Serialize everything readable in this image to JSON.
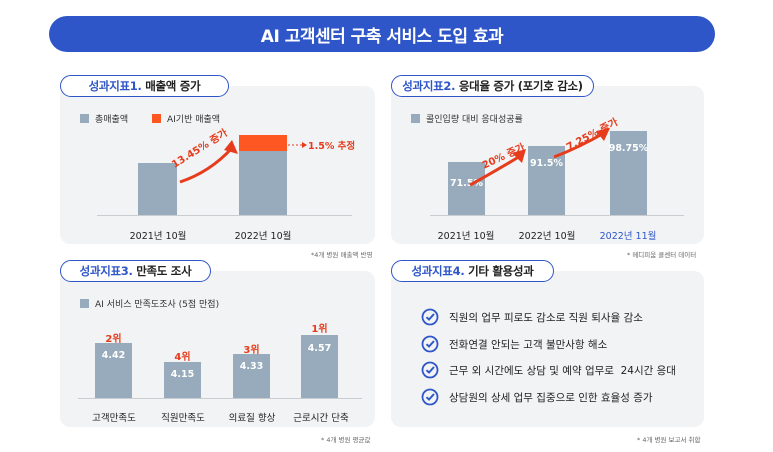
{
  "header": {
    "title": "AI 고객센터 구축 서비스 도입 효과"
  },
  "panel1": {
    "tab_prefix": "성과지표1.",
    "tab_title": "매출액 증가",
    "legend_total": "총매출액",
    "legend_ai": "AI기반 매출액",
    "x_labels": [
      "2021년 10월",
      "2022년 10월"
    ],
    "growth_label": "13.45% 증가",
    "estimate_label": "1.5% 추정",
    "note": "*4개 병원 매출액 반영"
  },
  "panel2": {
    "tab_prefix": "성과지표2.",
    "tab_title": "응대율 증가 (포기호 감소)",
    "legend": "콜인입량 대비 응대성공률",
    "values": [
      "71.5%",
      "91.5%",
      "98.75%"
    ],
    "x_labels": [
      "2021년 10월",
      "2022년 10월",
      "2022년 11월"
    ],
    "growth1": "20% 증가",
    "growth2": "7.25% 증가",
    "note": "* 메디피움 콜센터 데이터"
  },
  "panel3": {
    "tab_prefix": "성과지표3.",
    "tab_title": "만족도 조사",
    "legend": "AI 서비스 만족도조사 (5점 만점)",
    "ranks": [
      "2위",
      "4위",
      "3위",
      "1위"
    ],
    "values": [
      "4.42",
      "4.15",
      "4.33",
      "4.57"
    ],
    "x_labels": [
      "고객만족도",
      "직원만족도",
      "의료질 향상",
      "근로시간 단축"
    ],
    "note": "* 4개 병원 평균값"
  },
  "panel4": {
    "tab_prefix": "성과지표4.",
    "tab_title": "기타 활용성과",
    "items": [
      "직원의 업무 피로도 감소로 직원 퇴사율 감소",
      "전화연결 안되는 고객 불만사항 해소",
      "근무 외 시간에도 상담 및 예약 업무로  24시간 응대",
      "상담원의 상세 업무 집중으로 인한 효율성 증가"
    ],
    "note": "* 4개 병원  보고서 취합"
  },
  "colors": {
    "brand_blue": "#2f56c8",
    "bar_gray": "#97abbc",
    "accent_orange": "#ff5722",
    "accent_red": "#e63c1b"
  },
  "chart_data": [
    {
      "type": "bar",
      "categories": [
        "2021년 10월",
        "2022년 10월"
      ],
      "series": [
        {
          "name": "총매출액",
          "values": [
            100,
            113.45
          ]
        },
        {
          "name": "AI기반 매출액",
          "values": [
            0,
            1.5
          ]
        }
      ],
      "annotations": [
        "13.45% 증가",
        "1.5% 추정"
      ]
    },
    {
      "type": "bar",
      "categories": [
        "2021년 10월",
        "2022년 10월",
        "2022년 11월"
      ],
      "series": [
        {
          "name": "콜인입량 대비 응대성공률",
          "values": [
            71.5,
            91.5,
            98.75
          ]
        }
      ],
      "annotations": [
        "20% 증가",
        "7.25% 증가"
      ]
    },
    {
      "type": "bar",
      "categories": [
        "고객만족도",
        "직원만족도",
        "의료질 향상",
        "근로시간 단축"
      ],
      "series": [
        {
          "name": "AI 서비스 만족도조사 (5점 만점)",
          "values": [
            4.42,
            4.15,
            4.33,
            4.57
          ]
        }
      ],
      "annotations": [
        "2위",
        "4위",
        "3위",
        "1위"
      ]
    }
  ]
}
